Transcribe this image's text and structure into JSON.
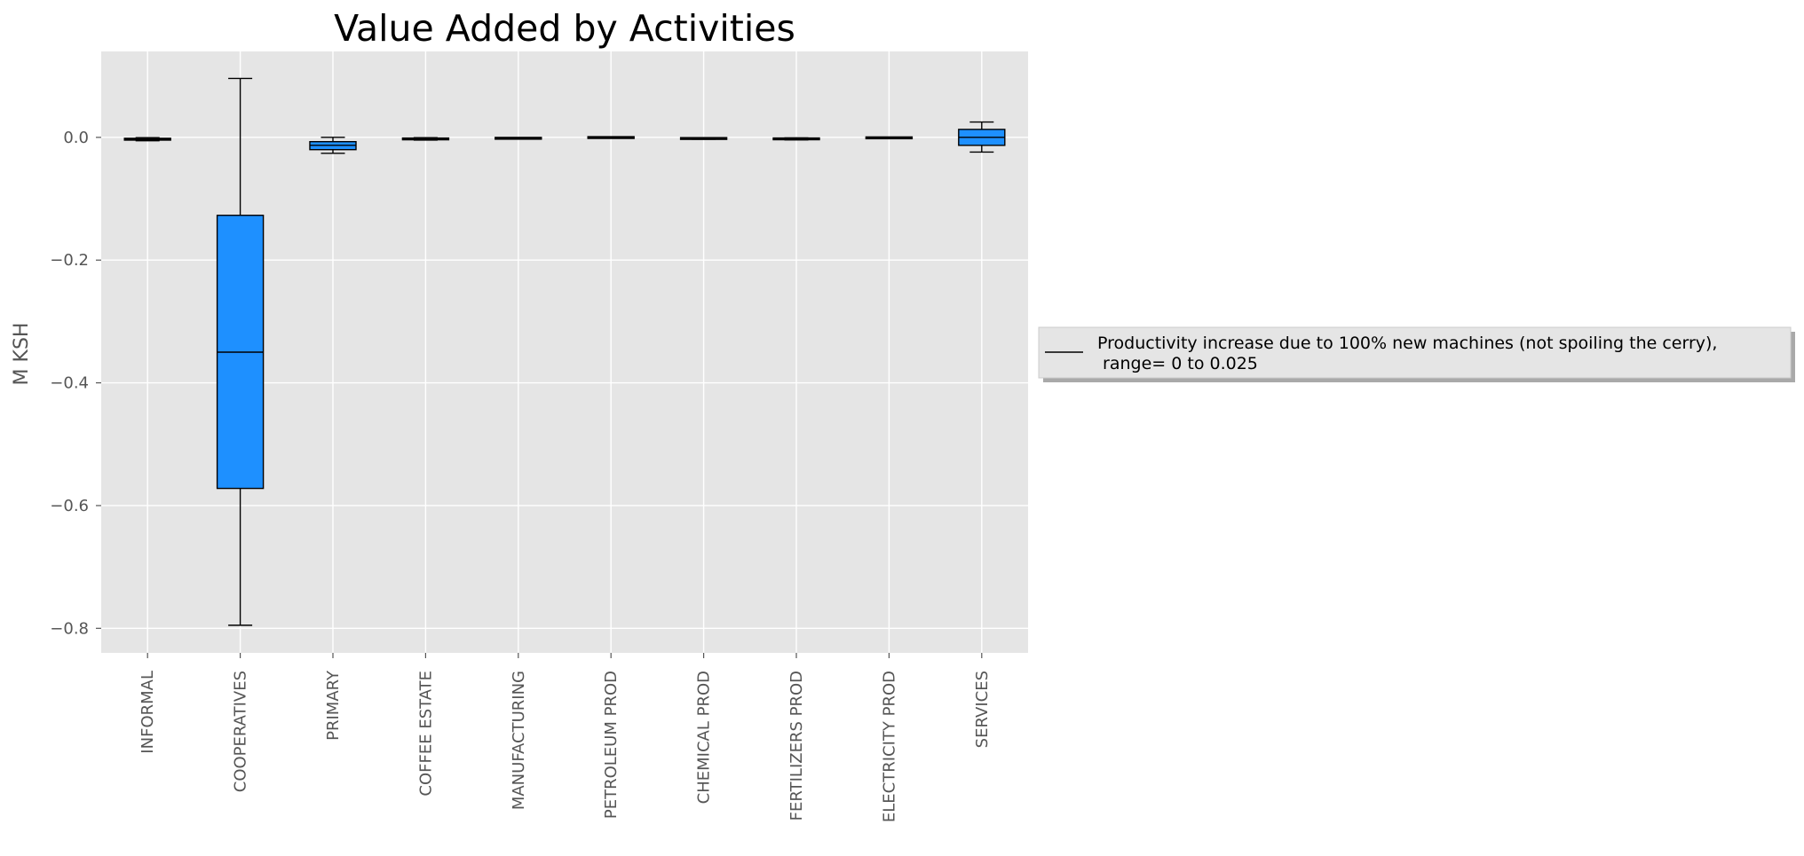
{
  "chart_data": {
    "type": "box",
    "title": "Value Added by Activities",
    "xlabel": "",
    "ylabel": "M KSH",
    "ylim": [
      -0.84,
      0.14
    ],
    "yticks": [
      0.0,
      -0.2,
      -0.4,
      -0.6,
      -0.8
    ],
    "ytick_labels": [
      "0.0",
      "−0.2",
      "−0.4",
      "−0.6",
      "−0.8"
    ],
    "grid": true,
    "legend_position": "right",
    "legend": {
      "line1": "Productivity increase due to 100% new machines (not spoiling the cerry),",
      "line2": " range= 0 to 0.025"
    },
    "box_color": "#1e90ff",
    "categories": [
      "INFORMAL",
      "COOPERATIVES",
      "PRIMARY",
      "COFFEE ESTATE",
      "MANUFACTURING",
      "PETROLEUM PROD",
      "CHEMICAL PROD",
      "FERTILIZERS PROD",
      "ELECTRICITY PROD",
      "SERVICES"
    ],
    "boxes": [
      {
        "whislo": -0.0055,
        "q1": -0.0045,
        "med": -0.003,
        "q3": -0.0015,
        "whishi": -0.0005
      },
      {
        "whislo": -0.795,
        "q1": -0.572,
        "med": -0.35,
        "q3": -0.127,
        "whishi": 0.096
      },
      {
        "whislo": -0.026,
        "q1": -0.02,
        "med": -0.013,
        "q3": -0.007,
        "whishi": 0.0
      },
      {
        "whislo": -0.0045,
        "q1": -0.0035,
        "med": -0.0025,
        "q3": -0.0015,
        "whishi": -0.0005
      },
      {
        "whislo": -0.0025,
        "q1": -0.002,
        "med": -0.0015,
        "q3": -0.001,
        "whishi": -0.0005
      },
      {
        "whislo": -0.0008,
        "q1": -0.0005,
        "med": -0.0003,
        "q3": -0.0001,
        "whishi": 0.0
      },
      {
        "whislo": -0.003,
        "q1": -0.0025,
        "med": -0.0018,
        "q3": -0.0012,
        "whishi": -0.0007
      },
      {
        "whislo": -0.004,
        "q1": -0.0032,
        "med": -0.0024,
        "q3": -0.0016,
        "whishi": -0.0008
      },
      {
        "whislo": -0.0015,
        "q1": -0.0011,
        "med": -0.0007,
        "q3": -0.0004,
        "whishi": -0.0001
      },
      {
        "whislo": -0.024,
        "q1": -0.013,
        "med": 0.0,
        "q3": 0.013,
        "whishi": 0.025
      }
    ]
  }
}
